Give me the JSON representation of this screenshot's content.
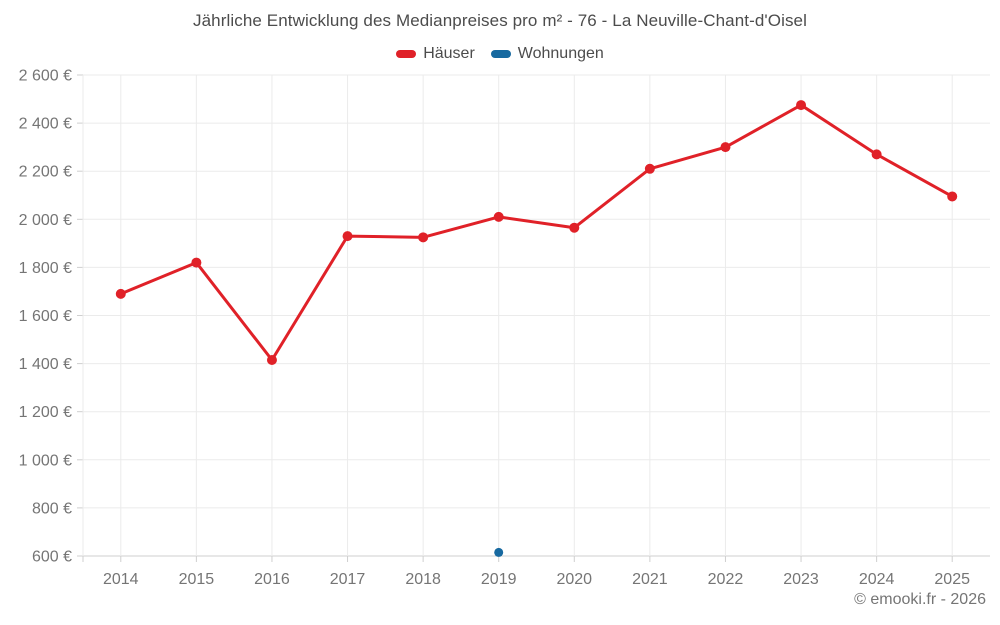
{
  "title": "Jährliche Entwicklung des Medianpreises pro m² - 76 - La Neuville-Chant-d'Oisel",
  "footer": "© emooki.fr - 2026",
  "legend": {
    "items": [
      {
        "label": "Häuser",
        "color": "#e02128"
      },
      {
        "label": "Wohnungen",
        "color": "#1769a0"
      }
    ]
  },
  "colors": {
    "hauser_red": "#e02128",
    "wohnungen_blue": "#1769a0",
    "grid": "#ebebeb",
    "axis": "#cfcfcf",
    "tick_text": "#757575",
    "title_text": "#4c4c4c"
  },
  "chart_data": {
    "type": "line",
    "title": "Jährliche Entwicklung des Medianpreises pro m² - 76 - La Neuville-Chant-d'Oisel",
    "x": [
      "2014",
      "2015",
      "2016",
      "2017",
      "2018",
      "2019",
      "2020",
      "2021",
      "2022",
      "2023",
      "2024",
      "2025"
    ],
    "series": [
      {
        "name": "Häuser",
        "color": "#e02128",
        "values": [
          1690,
          1820,
          1415,
          1930,
          1925,
          2010,
          1965,
          2210,
          2300,
          2475,
          2270,
          2095
        ]
      },
      {
        "name": "Wohnungen",
        "color": "#1769a0",
        "values": [
          null,
          null,
          null,
          null,
          null,
          615,
          null,
          null,
          null,
          null,
          null,
          null
        ]
      }
    ],
    "xlabel": "",
    "ylabel": "",
    "ylim": [
      600,
      2600
    ],
    "ytick_step": 200,
    "ytick_suffix": " €",
    "grid": true,
    "legend_position": "top"
  }
}
